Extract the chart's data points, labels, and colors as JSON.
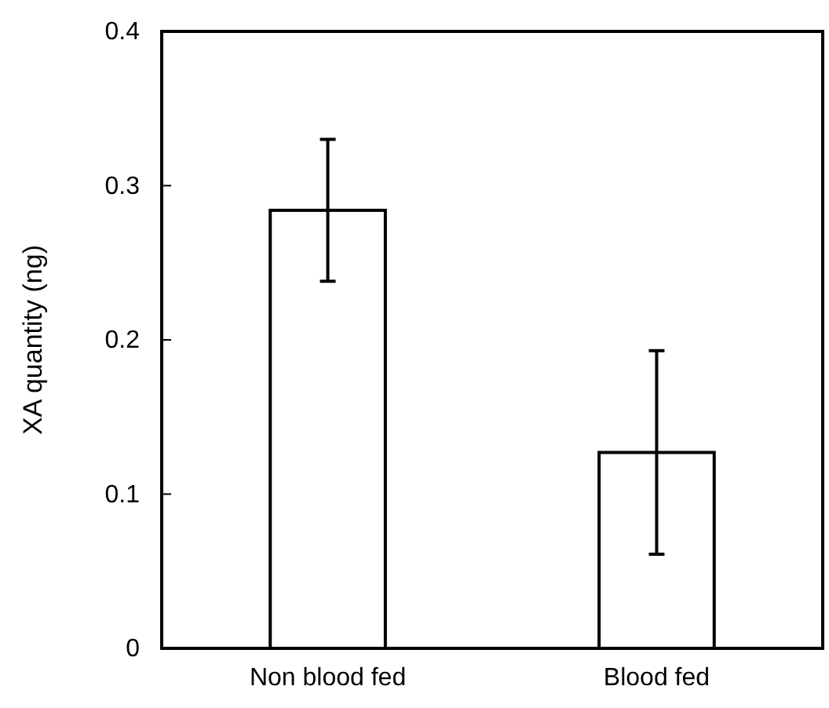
{
  "chart_data": {
    "type": "bar",
    "ylabel": "XA quantity (ng)",
    "categories": [
      "Non blood fed",
      "Blood fed"
    ],
    "values": [
      0.284,
      0.127
    ],
    "errors": [
      0.046,
      0.066
    ],
    "color": "#ffffff",
    "ylim": [
      0,
      0.4
    ],
    "yticks": [
      0,
      0.1,
      0.2,
      0.3,
      0.4
    ],
    "grid": false
  }
}
